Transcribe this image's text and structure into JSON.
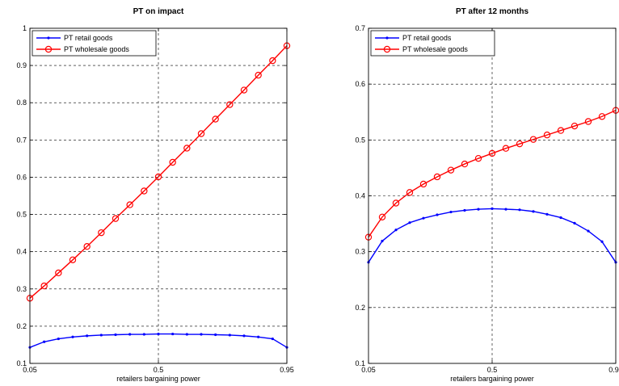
{
  "chart_data": [
    {
      "type": "line",
      "title": "PT on impact",
      "xlabel": "retailers bargaining power",
      "ylabel": "",
      "xlim": [
        0.05,
        0.95
      ],
      "ylim": [
        0.1,
        1.0
      ],
      "xticks": [
        0.05,
        0.5,
        0.95
      ],
      "xtick_labels": [
        "0.05",
        "0.5",
        "0.95"
      ],
      "yticks": [
        0.1,
        0.2,
        0.3,
        0.4,
        0.5,
        0.6,
        0.7,
        0.8,
        0.9,
        1.0
      ],
      "ytick_labels": [
        "0.1",
        "0.2",
        "0.3",
        "0.4",
        "0.5",
        "0.6",
        "0.7",
        "0.8",
        "0.9",
        "1"
      ],
      "grid": true,
      "legend_position": "top-left",
      "x": [
        0.05,
        0.1,
        0.15,
        0.2,
        0.25,
        0.3,
        0.35,
        0.4,
        0.45,
        0.5,
        0.55,
        0.6,
        0.65,
        0.7,
        0.75,
        0.8,
        0.85,
        0.9,
        0.95
      ],
      "series": [
        {
          "name": "PT retail goods",
          "color": "#0000ff",
          "marker": "dot",
          "values": [
            0.143,
            0.158,
            0.166,
            0.171,
            0.174,
            0.176,
            0.177,
            0.178,
            0.178,
            0.179,
            0.179,
            0.178,
            0.178,
            0.177,
            0.176,
            0.174,
            0.171,
            0.166,
            0.143
          ]
        },
        {
          "name": "PT wholesale goods",
          "color": "#ff0000",
          "marker": "circle",
          "values": [
            0.275,
            0.308,
            0.343,
            0.378,
            0.414,
            0.451,
            0.489,
            0.526,
            0.563,
            0.601,
            0.64,
            0.678,
            0.717,
            0.756,
            0.795,
            0.834,
            0.874,
            0.913,
            0.953
          ]
        }
      ]
    },
    {
      "type": "line",
      "title": "PT  after 12 months",
      "xlabel": "retailers bargaining power",
      "ylabel": "",
      "xlim": [
        0.05,
        0.95
      ],
      "ylim": [
        0.1,
        0.7
      ],
      "xticks": [
        0.05,
        0.5,
        0.95
      ],
      "xtick_labels": [
        "0.05",
        "0.5",
        "0.95"
      ],
      "yticks": [
        0.1,
        0.2,
        0.3,
        0.4,
        0.5,
        0.6,
        0.7
      ],
      "ytick_labels": [
        "0.1",
        "0.2",
        "0.3",
        "0.4",
        "0.5",
        "0.6",
        "0.7"
      ],
      "grid": true,
      "legend_position": "top-left",
      "x": [
        0.05,
        0.1,
        0.15,
        0.2,
        0.25,
        0.3,
        0.35,
        0.4,
        0.45,
        0.5,
        0.55,
        0.6,
        0.65,
        0.7,
        0.75,
        0.8,
        0.85,
        0.9,
        0.95
      ],
      "series": [
        {
          "name": "PT retail goods",
          "color": "#0000ff",
          "marker": "dot",
          "values": [
            0.281,
            0.319,
            0.339,
            0.352,
            0.36,
            0.366,
            0.371,
            0.374,
            0.376,
            0.377,
            0.376,
            0.375,
            0.372,
            0.367,
            0.361,
            0.351,
            0.337,
            0.318,
            0.281
          ]
        },
        {
          "name": "PT wholesale goods",
          "color": "#ff0000",
          "marker": "circle",
          "values": [
            0.326,
            0.362,
            0.387,
            0.406,
            0.421,
            0.434,
            0.446,
            0.457,
            0.467,
            0.476,
            0.485,
            0.493,
            0.501,
            0.509,
            0.517,
            0.525,
            0.533,
            0.542,
            0.553
          ]
        }
      ]
    }
  ]
}
